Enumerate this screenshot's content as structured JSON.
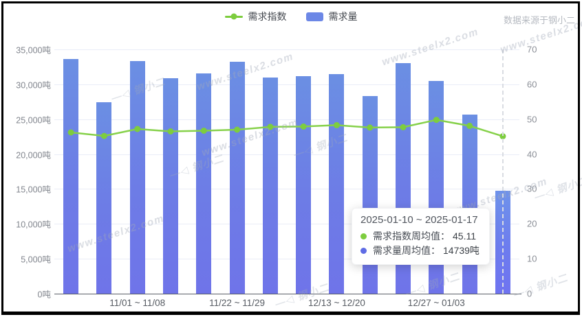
{
  "header": {
    "legend": [
      {
        "label": "需求指数",
        "type": "line",
        "color": "#7dcd3e"
      },
      {
        "label": "需求量",
        "type": "bar",
        "color": "#6c87e6"
      }
    ],
    "source_label": "数据来源于钢小二"
  },
  "chart_data": {
    "type": "bar",
    "subtype": "bar-line-combo",
    "num_categories": 14,
    "highlight_index": 13,
    "legend_position": "top-center",
    "grid": true,
    "x_tick_labels": [
      {
        "index": 2,
        "label": "11/01 ~ 11/08"
      },
      {
        "index": 5,
        "label": "11/22 ~ 11/29"
      },
      {
        "index": 8,
        "label": "12/13 ~ 12/20"
      },
      {
        "index": 11,
        "label": "12/27 ~ 01/03"
      }
    ],
    "series": [
      {
        "name": "需求指数",
        "type": "line",
        "y_axis": "right",
        "color": "#86d14a",
        "point_color": "#7dcd3e",
        "values": [
          46.2,
          45.2,
          47.2,
          46.5,
          46.7,
          47.0,
          47.8,
          47.9,
          48.3,
          47.6,
          47.7,
          49.8,
          48.1,
          45.11
        ]
      },
      {
        "name": "需求量",
        "type": "bar",
        "y_axis": "left",
        "unit": "吨",
        "color_top": "#6b8fe3",
        "color_bottom": "#6f74e9",
        "values": [
          33600,
          27400,
          33300,
          30850,
          31600,
          33250,
          31000,
          31200,
          31500,
          28300,
          33000,
          30450,
          25700,
          14739
        ]
      }
    ],
    "y_axis_left": {
      "min": 0,
      "max": 35000,
      "step": 5000,
      "unit": "吨",
      "labels": [
        "35,000吨",
        "30,000吨",
        "25,000吨",
        "20,000吨",
        "15,000吨",
        "10,000吨",
        "5,000吨",
        "0吨"
      ]
    },
    "y_axis_right": {
      "min": 0,
      "max": 70,
      "step": 10,
      "labels": [
        "70",
        "60",
        "50",
        "40",
        "30",
        "20",
        "10",
        "0"
      ]
    }
  },
  "tooltip": {
    "title": "2025-01-10 ~ 2025-01-17",
    "rows": [
      {
        "marker_color": "#7dcd3e",
        "label": "需求指数周均值：",
        "value": "45.11"
      },
      {
        "marker_color": "#5f6ce5",
        "label": "需求量周均值：",
        "value": "14739吨"
      }
    ]
  },
  "watermark": {
    "url_text": "www.steelx2.com",
    "logo_text": "钢小二"
  }
}
